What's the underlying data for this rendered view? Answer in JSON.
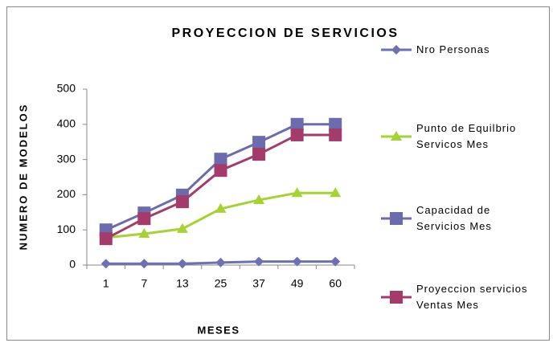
{
  "chart_data": {
    "type": "line",
    "title": "PROYECCION DE SERVICIOS",
    "x_label": "MESES",
    "y_label": "NUMERO DE MODELOS",
    "categories": [
      "1",
      "7",
      "13",
      "25",
      "37",
      "49",
      "60"
    ],
    "ylim": [
      0,
      500
    ],
    "yticks": [
      0,
      100,
      200,
      300,
      400,
      500
    ],
    "grid": false,
    "legend": "right",
    "series": [
      {
        "name": "Nro Personas",
        "color": "#6e70b3",
        "marker": "diamond",
        "values": [
          4,
          4,
          4,
          7,
          10,
          10,
          10
        ]
      },
      {
        "name": "Punto de Equilbrio\nServicos Mes",
        "color": "#a6d232",
        "marker": "triangle",
        "values": [
          78,
          89,
          103,
          160,
          185,
          205,
          205
        ]
      },
      {
        "name": "Capacidad de\nServicios Mes",
        "color": "#6b6bae",
        "marker": "square",
        "values": [
          100,
          148,
          199,
          301,
          349,
          400,
          400
        ]
      },
      {
        "name": "Proyeccion servicios\nVentas Mes",
        "color": "#a33b6b",
        "marker": "square",
        "values": [
          75,
          132,
          180,
          269,
          315,
          370,
          370
        ]
      }
    ]
  }
}
